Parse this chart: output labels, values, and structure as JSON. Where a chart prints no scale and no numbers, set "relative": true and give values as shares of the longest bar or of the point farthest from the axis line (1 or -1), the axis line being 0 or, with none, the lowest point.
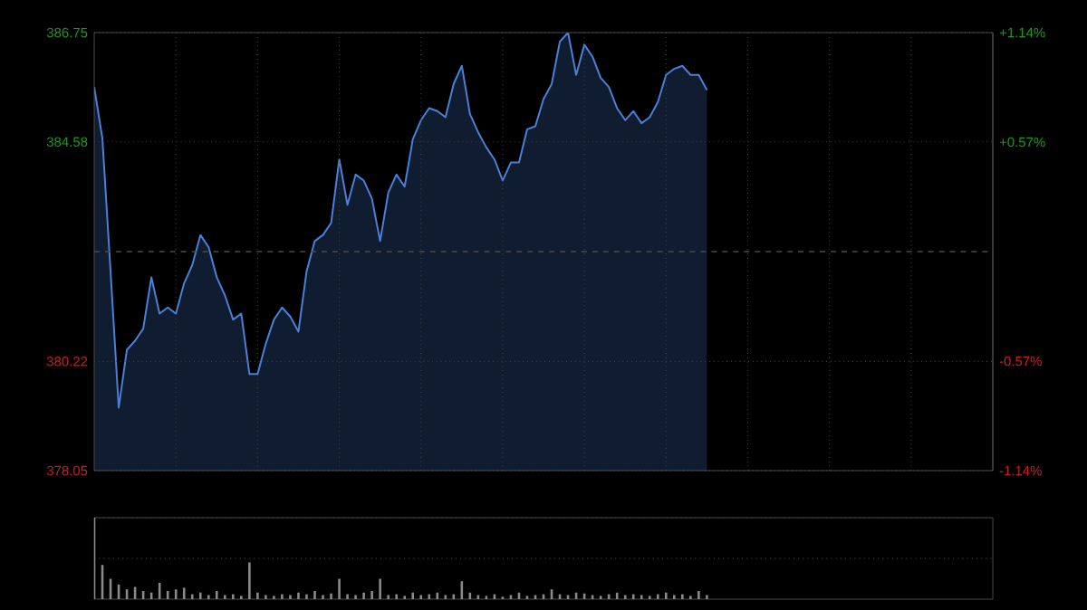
{
  "chart_data": [
    {
      "type": "area",
      "color": "#4a80d8",
      "marker": "none",
      "line_style": "solid",
      "grid": true,
      "categories": [
        null,
        null,
        null,
        null,
        null,
        null,
        null,
        null,
        null,
        null,
        null,
        null,
        null,
        null,
        null,
        null,
        null,
        null,
        null,
        null,
        null,
        null,
        null,
        null,
        null,
        null,
        null,
        null,
        null,
        null,
        null,
        null,
        null,
        null,
        null,
        null,
        null,
        null,
        null,
        null,
        null,
        null,
        null,
        null,
        null,
        null,
        null,
        null,
        null,
        null,
        null,
        null,
        null,
        null,
        null,
        null,
        null,
        null,
        null,
        null,
        null,
        null,
        null,
        null,
        null,
        null,
        null,
        null,
        null,
        null,
        null,
        null,
        null,
        null,
        null,
        null,
        null,
        null,
        null,
        null,
        null,
        null,
        null,
        null,
        null,
        null,
        null,
        null,
        null,
        null,
        null,
        null,
        null,
        null,
        null,
        null,
        null,
        null,
        null,
        null,
        null,
        null,
        null,
        null,
        null,
        null,
        null,
        null,
        null,
        null,
        null
      ],
      "values": [
        385.67,
        384.65,
        382.01,
        379.3,
        380.45,
        380.63,
        380.87,
        381.89,
        381.17,
        381.29,
        381.17,
        381.77,
        382.13,
        382.73,
        382.49,
        381.89,
        381.53,
        381.05,
        381.17,
        379.97,
        379.97,
        380.57,
        381.05,
        381.29,
        381.11,
        380.81,
        382.01,
        382.61,
        382.73,
        382.97,
        384.23,
        383.33,
        383.93,
        383.81,
        383.45,
        382.61,
        383.57,
        383.93,
        383.69,
        384.63,
        385.01,
        385.25,
        385.19,
        385.07,
        385.73,
        386.09,
        385.13,
        384.77,
        384.47,
        384.23,
        383.81,
        384.17,
        384.17,
        384.83,
        384.89,
        385.43,
        385.73,
        386.57,
        386.75,
        385.91,
        386.51,
        386.27,
        385.85,
        385.67,
        385.25,
        385.01,
        385.19,
        384.95,
        385.07,
        385.37,
        385.91,
        386.03,
        386.09,
        385.91,
        385.91,
        385.61,
        null,
        null,
        null,
        null,
        null,
        null,
        null,
        null,
        null,
        null,
        null,
        null,
        null,
        null,
        null,
        null,
        null,
        null,
        null,
        null,
        null,
        null,
        null,
        null,
        null,
        null,
        null,
        null,
        null,
        null,
        null,
        null,
        null,
        null,
        null
      ],
      "ylim": [
        378.05,
        386.75
      ],
      "yticks": [
        378.05,
        380.22,
        384.58,
        386.75
      ],
      "y2lim": [
        -1.14,
        1.14
      ],
      "y2ticks": [
        {
          "value": -1.14,
          "label": "-1.14%"
        },
        {
          "value": -0.57,
          "label": "-0.57%"
        },
        {
          "value": 0.57,
          "label": "+0.57%"
        },
        {
          "value": 1.14,
          "label": "+1.14%"
        }
      ],
      "ref_lines": [
        {
          "axis": "y",
          "value": 382.4,
          "line_style": "dashed"
        }
      ]
    },
    {
      "type": "bar",
      "color": "#8a8a8a",
      "relative": true,
      "ref_lines": [
        {
          "axis": "y",
          "value": 0.5,
          "line_style": "dotted"
        },
        {
          "axis": "y",
          "value": 1.0,
          "line_style": "dotted"
        }
      ],
      "categories": [
        null,
        null,
        null,
        null,
        null,
        null,
        null,
        null,
        null,
        null,
        null,
        null,
        null,
        null,
        null,
        null,
        null,
        null,
        null,
        null,
        null,
        null,
        null,
        null,
        null,
        null,
        null,
        null,
        null,
        null,
        null,
        null,
        null,
        null,
        null,
        null,
        null,
        null,
        null,
        null,
        null,
        null,
        null,
        null,
        null,
        null,
        null,
        null,
        null,
        null,
        null,
        null,
        null,
        null,
        null,
        null,
        null,
        null,
        null,
        null,
        null,
        null,
        null,
        null,
        null,
        null,
        null,
        null,
        null,
        null,
        null,
        null,
        null,
        null,
        null,
        null,
        null,
        null,
        null,
        null,
        null,
        null,
        null,
        null,
        null,
        null,
        null,
        null,
        null,
        null,
        null,
        null,
        null,
        null,
        null,
        null,
        null,
        null,
        null,
        null,
        null,
        null,
        null,
        null,
        null,
        null,
        null,
        null,
        null,
        null,
        null
      ],
      "values": [
        1.0,
        0.42,
        0.25,
        0.18,
        0.12,
        0.15,
        0.1,
        0.08,
        0.2,
        0.1,
        0.12,
        0.14,
        0.06,
        0.08,
        0.05,
        0.1,
        0.05,
        0.06,
        0.04,
        0.45,
        0.08,
        0.05,
        0.04,
        0.06,
        0.05,
        0.08,
        0.06,
        0.1,
        0.05,
        0.07,
        0.25,
        0.06,
        0.05,
        0.08,
        0.1,
        0.25,
        0.05,
        0.06,
        0.04,
        0.08,
        0.05,
        0.06,
        0.08,
        0.05,
        0.06,
        0.22,
        0.08,
        0.05,
        0.04,
        0.06,
        0.03,
        0.05,
        0.08,
        0.04,
        0.05,
        0.06,
        0.12,
        0.06,
        0.05,
        0.08,
        0.07,
        0.05,
        0.04,
        0.06,
        0.08,
        0.05,
        0.06,
        0.05,
        0.04,
        0.06,
        0.08,
        0.05,
        0.06,
        0.04,
        0.1,
        0.05,
        null,
        null,
        null,
        null,
        null,
        null,
        null,
        null,
        null,
        null,
        null,
        null,
        null,
        null,
        null,
        null,
        null,
        null,
        null,
        null,
        null,
        null,
        null,
        null,
        null,
        null,
        null,
        null,
        null,
        null,
        null,
        null,
        null,
        null,
        null
      ]
    }
  ]
}
